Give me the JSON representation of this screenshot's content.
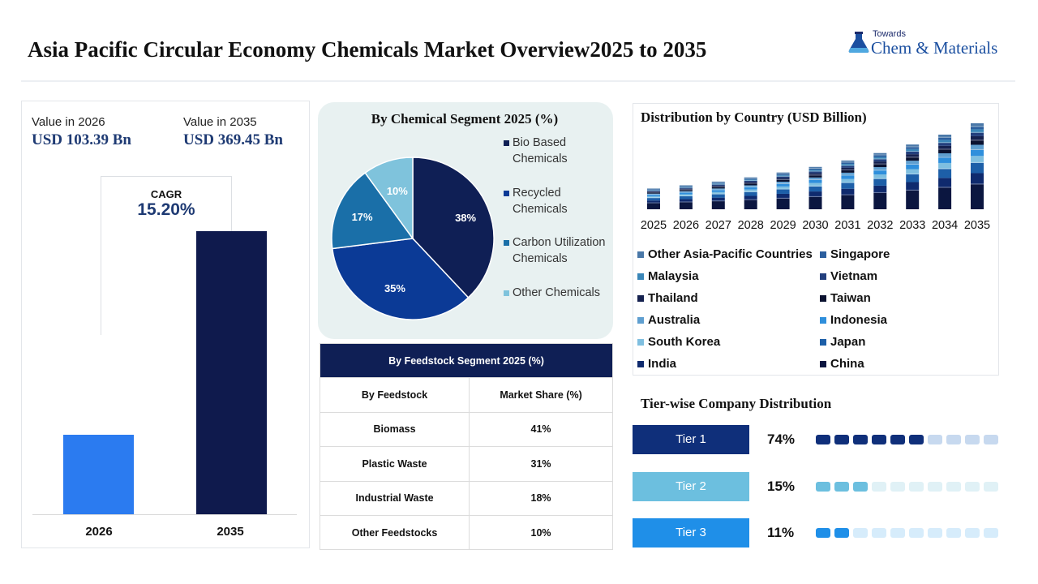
{
  "header": {
    "title": "Asia Pacific Circular Economy Chemicals Market Overview2025 to 2035",
    "logo_small": "Towards",
    "logo_main": "Chem & Materials"
  },
  "market_value": {
    "label_2026": "Value in 2026",
    "value_2026": "USD 103.39 Bn",
    "label_2035": "Value in 2035",
    "value_2035": "USD 369.45 Bn",
    "cagr_label": "CAGR",
    "cagr_value": "15.20%",
    "years": [
      "2026",
      "2035"
    ]
  },
  "chemical_segment_title": "By Chemical Segment 2025 (%)",
  "feedstock": {
    "title": "By Feedstock  Segment 2025 (%)",
    "col1": "By Feedstock",
    "col2": "Market Share (%)",
    "rows": [
      {
        "name": "Biomass",
        "share": "41%"
      },
      {
        "name": "Plastic Waste",
        "share": "31%"
      },
      {
        "name": "Industrial Waste",
        "share": "18%"
      },
      {
        "name": "Other Feedstocks",
        "share": "10%"
      }
    ]
  },
  "country_title": "Distribution by Country (USD Billion)",
  "tier": {
    "title": "Tier-wise Company Distribution",
    "items": [
      {
        "label": "Tier 1",
        "pct": "74%",
        "filled": 6,
        "total": 10,
        "pill_color": "#0f2f7a",
        "on": "#0f2f7a",
        "off": "#c7d9ef"
      },
      {
        "label": "Tier 2",
        "pct": "15%",
        "filled": 3,
        "total": 10,
        "pill_color": "#6cbfdf",
        "on": "#6cbfdf",
        "off": "#e0f1f6"
      },
      {
        "label": "Tier 3",
        "pct": "11%",
        "filled": 2,
        "total": 10,
        "pill_color": "#1f8fe8",
        "on": "#1f8fe8",
        "off": "#d6ecfb"
      }
    ]
  },
  "chart_data": [
    {
      "type": "bar",
      "categories": [
        "2026",
        "2035"
      ],
      "values": [
        103.39,
        369.45
      ],
      "colors": [
        "#2b7bf0",
        "#0f1a4d"
      ]
    },
    {
      "type": "pie",
      "title": "By Chemical Segment 2025 (%)",
      "labels": [
        "Bio Based Chemicals",
        "Recycled Chemicals",
        "Carbon Utilization Chemicals",
        "Other Chemicals"
      ],
      "values": [
        38,
        35,
        17,
        10
      ],
      "data_labels": [
        "38%",
        "35%",
        "17%",
        "10%"
      ],
      "colors": [
        "#0f1f55",
        "#0b3a96",
        "#1a6fa8",
        "#7fc3dc"
      ]
    },
    {
      "type": "bar",
      "stacked": true,
      "title": "Distribution by Country (USD Billion)",
      "categories": [
        "2025",
        "2026",
        "2027",
        "2028",
        "2029",
        "2030",
        "2031",
        "2032",
        "2033",
        "2034",
        "2035"
      ],
      "totals": [
        89.7,
        103.39,
        119.1,
        137.2,
        158.0,
        182.0,
        209.6,
        241.5,
        278.2,
        320.7,
        369.45
      ],
      "series": [
        {
          "name": "China",
          "color": "#0b1640",
          "share": 0.29
        },
        {
          "name": "India",
          "color": "#0f2a6e",
          "share": 0.13
        },
        {
          "name": "Japan",
          "color": "#1d5fa8",
          "share": 0.12
        },
        {
          "name": "South Korea",
          "color": "#7fbfe0",
          "share": 0.08
        },
        {
          "name": "Indonesia",
          "color": "#2f8fdc",
          "share": 0.07
        },
        {
          "name": "Australia",
          "color": "#5f9fd0",
          "share": 0.06
        },
        {
          "name": "Taiwan",
          "color": "#0a1230",
          "share": 0.05
        },
        {
          "name": "Thailand",
          "color": "#15214f",
          "share": 0.05
        },
        {
          "name": "Vietnam",
          "color": "#233f7d",
          "share": 0.04
        },
        {
          "name": "Malaysia",
          "color": "#3a86b8",
          "share": 0.04
        },
        {
          "name": "Singapore",
          "color": "#2c5f9e",
          "share": 0.03
        },
        {
          "name": "Other Asia-Pacific Countries",
          "color": "#4a78a8",
          "share": 0.04
        }
      ],
      "legend_order": [
        "Other Asia-Pacific Countries",
        "Singapore",
        "Malaysia",
        "Vietnam",
        "Thailand",
        "Taiwan",
        "Australia",
        "Indonesia",
        "South Korea",
        "Japan",
        "India",
        "China"
      ]
    }
  ]
}
